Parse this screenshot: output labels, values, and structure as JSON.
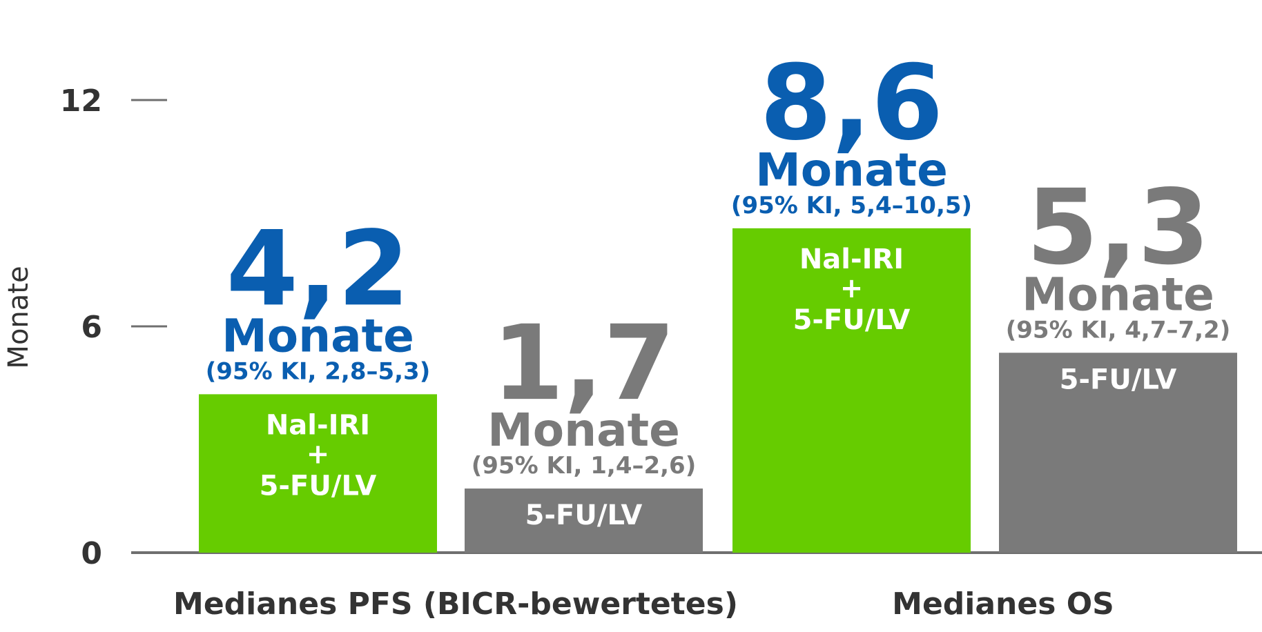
{
  "chart_data": {
    "type": "bar",
    "ylabel": "Monate",
    "ylim": [
      0,
      12
    ],
    "yticks": [
      0,
      6,
      12
    ],
    "ytick_labels": [
      "0",
      "6",
      "12"
    ],
    "categories": [
      "Medianes PFS (BICR-bewertetes)",
      "Medianes OS"
    ],
    "colors": {
      "green": "#66cc00",
      "gray": "#7a7a7a",
      "blue": "#0a5eb0",
      "axis": "#6f6f6f",
      "text": "#333333"
    },
    "bars": [
      {
        "category": 0,
        "value": 4.2,
        "color": "green",
        "label_color": "blue",
        "value_label": "4,2",
        "unit": "Monate",
        "ci": "(95% KI, 2,8–5,3)",
        "inside_lines": [
          "Nal-IRI",
          "+",
          "5-FU/LV"
        ]
      },
      {
        "category": 0,
        "value": 1.7,
        "color": "gray",
        "label_color": "gray",
        "value_label": "1,7",
        "unit": "Monate",
        "ci": "(95% KI, 1,4–2,6)",
        "inside_lines": [
          "5-FU/LV"
        ]
      },
      {
        "category": 1,
        "value": 8.6,
        "color": "green",
        "label_color": "blue",
        "value_label": "8,6",
        "unit": "Monate",
        "ci": "(95% KI, 5,4–10,5)",
        "inside_lines": [
          "Nal-IRI",
          "+",
          "5-FU/LV"
        ]
      },
      {
        "category": 1,
        "value": 5.3,
        "color": "gray",
        "label_color": "gray",
        "value_label": "5,3",
        "unit": "Monate",
        "ci": "(95% KI, 4,7–7,2)",
        "inside_lines": [
          "5-FU/LV"
        ]
      }
    ]
  }
}
